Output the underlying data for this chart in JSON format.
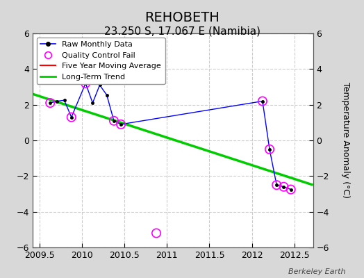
{
  "title": "REHOBETH",
  "subtitle": "23.250 S, 17.067 E (Namibia)",
  "ylabel": "Temperature Anomaly (°C)",
  "watermark": "Berkeley Earth",
  "xlim": [
    2009.42,
    2012.72
  ],
  "ylim": [
    -6,
    6
  ],
  "yticks": [
    -6,
    -4,
    -2,
    0,
    2,
    4,
    6
  ],
  "xticks": [
    2009.5,
    2010.0,
    2010.5,
    2011.0,
    2011.5,
    2012.0,
    2012.5
  ],
  "raw_x": [
    2009.625,
    2009.708,
    2009.791,
    2009.875,
    2010.042,
    2010.125,
    2010.208,
    2010.291,
    2010.375,
    2010.458,
    2012.125,
    2012.208,
    2012.291,
    2012.375,
    2012.458
  ],
  "raw_y": [
    2.1,
    2.2,
    2.25,
    1.3,
    3.2,
    2.1,
    3.1,
    2.55,
    1.1,
    0.9,
    2.2,
    -0.5,
    -2.5,
    -2.6,
    -2.75
  ],
  "qc_fail_x": [
    2009.625,
    2009.875,
    2010.042,
    2010.375,
    2010.458,
    2010.875,
    2012.125,
    2012.208,
    2012.291,
    2012.375,
    2012.458
  ],
  "qc_fail_y": [
    2.1,
    1.3,
    3.2,
    1.1,
    0.9,
    -5.2,
    2.2,
    -0.5,
    -2.5,
    -2.6,
    -2.75
  ],
  "trend_x": [
    2009.42,
    2012.72
  ],
  "trend_y": [
    2.6,
    -2.5
  ],
  "outer_bg_color": "#d8d8d8",
  "plot_bg_color": "#ffffff",
  "raw_line_color": "#0000ff",
  "raw_marker_color": "#000000",
  "qc_circle_color": "#ff00ff",
  "trend_color": "#00cc00",
  "mavg_color": "#ff0000",
  "grid_color": "#cccccc",
  "title_fontsize": 14,
  "subtitle_fontsize": 11,
  "tick_fontsize": 9,
  "ylabel_fontsize": 9
}
